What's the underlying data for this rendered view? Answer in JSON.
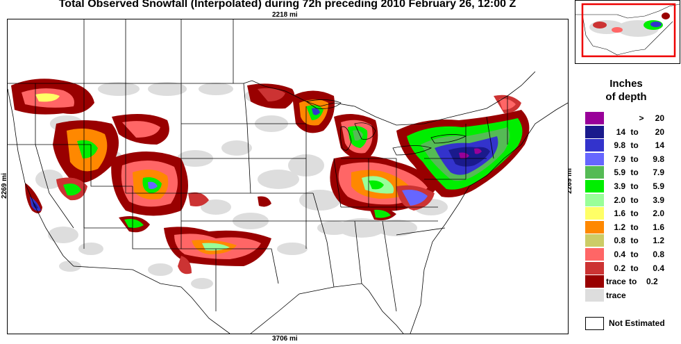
{
  "title": "Total Observed Snowfall (Interpolated) during 72h preceding 2010 February 26, 12:00 Z",
  "dimensions": {
    "top": "2218 mi",
    "bottom": "3706 mi",
    "left": "2269 mi",
    "right": "2269 mi"
  },
  "legend": {
    "title_line1": "Inches",
    "title_line2": "of depth",
    "entries": [
      {
        "low": "",
        "sep": ">",
        "high": "20",
        "color": "#990099"
      },
      {
        "low": "14",
        "sep": "to",
        "high": "20",
        "color": "#1a1a8c"
      },
      {
        "low": "9.8",
        "sep": "to",
        "high": "14",
        "color": "#3333cc"
      },
      {
        "low": "7.9",
        "sep": "to",
        "high": "9.8",
        "color": "#6666ff"
      },
      {
        "low": "5.9",
        "sep": "to",
        "high": "7.9",
        "color": "#55bb55"
      },
      {
        "low": "3.9",
        "sep": "to",
        "high": "5.9",
        "color": "#00ee00"
      },
      {
        "low": "2.0",
        "sep": "to",
        "high": "3.9",
        "color": "#99ff99"
      },
      {
        "low": "1.6",
        "sep": "to",
        "high": "2.0",
        "color": "#ffff66"
      },
      {
        "low": "1.2",
        "sep": "to",
        "high": "1.6",
        "color": "#ff8800"
      },
      {
        "low": "0.8",
        "sep": "to",
        "high": "1.2",
        "color": "#cccc66"
      },
      {
        "low": "0.4",
        "sep": "to",
        "high": "0.8",
        "color": "#ff6666"
      },
      {
        "low": "0.2",
        "sep": "to",
        "high": "0.4",
        "color": "#cc3333"
      },
      {
        "low": "trace",
        "sep": "to",
        "high": "0.2",
        "color": "#990000"
      },
      {
        "low": "trace",
        "sep": "",
        "high": "",
        "color": "#dddddd"
      }
    ],
    "not_estimated": {
      "label": "Not Estimated",
      "color": "#ffffff"
    }
  },
  "colors": {
    "boundaries": "#000000",
    "trace": "#dddddd",
    "inset_highlight": "#ee0000"
  }
}
